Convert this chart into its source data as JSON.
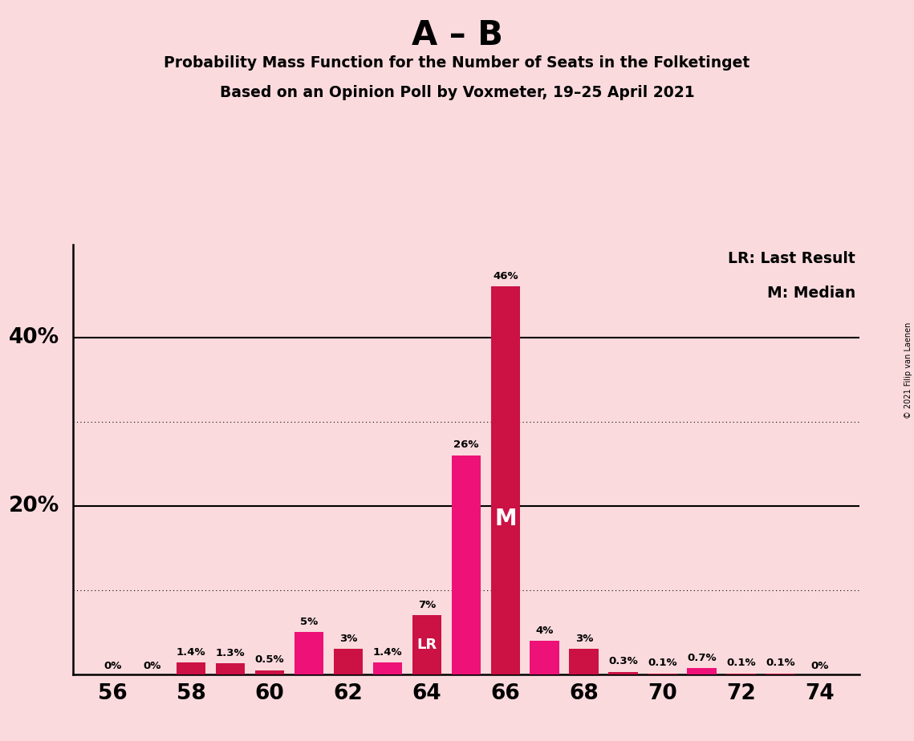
{
  "title_main": "A – B",
  "title_sub1": "Probability Mass Function for the Number of Seats in the Folketinget",
  "title_sub2": "Based on an Opinion Poll by Voxmeter, 19–25 April 2021",
  "copyright": "© 2021 Filip van Laenen",
  "seats": [
    56,
    57,
    58,
    59,
    60,
    61,
    62,
    63,
    64,
    65,
    66,
    67,
    68,
    69,
    70,
    71,
    72,
    73,
    74
  ],
  "values": [
    0.0,
    0.0,
    1.4,
    1.3,
    0.5,
    5.0,
    3.0,
    1.4,
    7.0,
    26.0,
    46.0,
    4.0,
    3.0,
    0.3,
    0.1,
    0.7,
    0.1,
    0.1,
    0.0
  ],
  "labels": [
    "0%",
    "0%",
    "1.4%",
    "1.3%",
    "0.5%",
    "5%",
    "3%",
    "1.4%",
    "7%",
    "26%",
    "46%",
    "4%",
    "3%",
    "0.3%",
    "0.1%",
    "0.7%",
    "0.1%",
    "0.1%",
    "0%"
  ],
  "bar_colors": [
    "#CC1144",
    "#CC1144",
    "#CC1144",
    "#CC1144",
    "#CC1144",
    "#EE1177",
    "#CC1144",
    "#EE1177",
    "#CC1144",
    "#EE1177",
    "#CC1144",
    "#EE1177",
    "#CC1144",
    "#CC1144",
    "#CC1144",
    "#EE1177",
    "#CC1144",
    "#CC1144",
    "#CC1144"
  ],
  "last_result_seat": 64,
  "median_seat": 66,
  "background_color": "#FADADD",
  "plot_bg_color": "#FADADD",
  "dotted_lines": [
    10,
    30
  ],
  "solid_lines": [
    20,
    40
  ],
  "xlim": [
    55.0,
    75.0
  ],
  "ylim": [
    0,
    51
  ],
  "legend_lr": "LR: Last Result",
  "legend_m": "M: Median"
}
